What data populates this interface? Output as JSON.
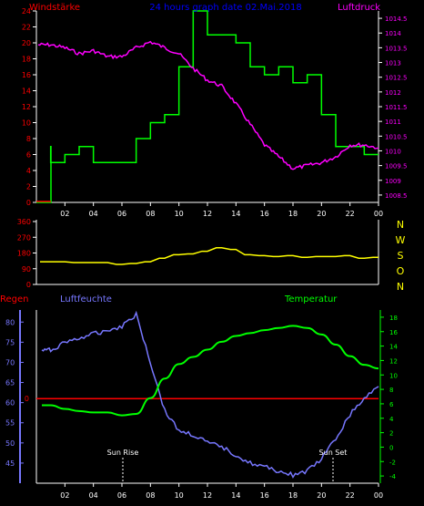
{
  "header": {
    "wind_label": "Windstärke",
    "date_label": "24 hours graph date 02.Mai.2018",
    "pressure_label": "Luftdruck"
  },
  "wind_axis_ticks": [
    "24",
    "22",
    "20",
    "18",
    "16",
    "14",
    "12",
    "10",
    "8",
    "6",
    "4",
    "2",
    "0"
  ],
  "pressure_axis_ticks": [
    "1014.5",
    "1014",
    "1013.5",
    "1013",
    "1012.5",
    "1012",
    "1011.5",
    "1011",
    "1010.5",
    "1010",
    "1009.5",
    "1009",
    "1008.5"
  ],
  "hour_ticks": [
    "02",
    "04",
    "06",
    "08",
    "10",
    "12",
    "14",
    "16",
    "18",
    "20",
    "22",
    "00"
  ],
  "direction": {
    "left_ticks": [
      "360",
      "270",
      "180",
      "90",
      "0"
    ],
    "right_labels": [
      "N",
      "W",
      "S",
      "O",
      "N"
    ]
  },
  "bottom": {
    "rain_label": "Regen",
    "humidity_label": "Luftfeuchte",
    "temperature_label": "Temperatur",
    "humidity_ticks": [
      "80",
      "75",
      "70",
      "65",
      "60",
      "55",
      "50",
      "45"
    ],
    "temperature_ticks": [
      "18",
      "16",
      "14",
      "12",
      "10",
      "8",
      "6",
      "4",
      "2",
      "0",
      "-2",
      "-4"
    ],
    "rain_tick": "0",
    "sunrise_label": "Sun Rise",
    "sunset_label": "Sun Set"
  },
  "colors": {
    "wind": "#00ff00",
    "pressure": "#ff00ff",
    "direction": "#ffff00",
    "humidity": "#7777ff",
    "temperature": "#00ff00",
    "rain": "#ff0000",
    "header_left": "#ff0000",
    "header_center": "#0000ff",
    "axis_white": "#ffffff"
  },
  "chart_data": [
    {
      "type": "line",
      "title": "24 hours graph date 02.Mai.2018",
      "x": [
        "01",
        "02",
        "03",
        "04",
        "05",
        "06",
        "07",
        "08",
        "09",
        "10",
        "11",
        "12",
        "13",
        "14",
        "15",
        "16",
        "17",
        "18",
        "19",
        "20",
        "21",
        "22",
        "23",
        "00"
      ],
      "series": [
        {
          "name": "Windstärke",
          "axis": "left",
          "values": [
            7,
            5,
            6,
            7,
            5,
            5,
            5,
            8,
            10,
            11,
            17,
            24,
            21,
            21,
            20,
            17,
            16,
            17,
            15,
            16,
            11,
            7,
            7,
            6
          ]
        },
        {
          "name": "Luftdruck",
          "axis": "right",
          "values": [
            1013.6,
            1013.5,
            1013.3,
            1013.4,
            1013.2,
            1013.2,
            1013.5,
            1013.7,
            1013.5,
            1013.3,
            1012.8,
            1012.4,
            1012.2,
            1011.6,
            1010.9,
            1010.2,
            1009.8,
            1009.4,
            1009.5,
            1009.6,
            1009.8,
            1010.2,
            1010.2,
            1010.1
          ]
        }
      ],
      "ylim_left": [
        0,
        24
      ],
      "ylim_right": [
        1008.25,
        1014.75
      ],
      "ylabel_left": "Windstärke",
      "ylabel_right": "Luftdruck",
      "grid": false
    },
    {
      "type": "line",
      "x": [
        "01",
        "02",
        "03",
        "04",
        "05",
        "06",
        "07",
        "08",
        "09",
        "10",
        "11",
        "12",
        "13",
        "14",
        "15",
        "16",
        "17",
        "18",
        "19",
        "20",
        "21",
        "22",
        "23",
        "00"
      ],
      "series": [
        {
          "values": [
            130,
            130,
            125,
            125,
            125,
            115,
            120,
            130,
            150,
            170,
            175,
            190,
            210,
            200,
            170,
            165,
            160,
            165,
            155,
            160,
            160,
            165,
            150,
            155
          ]
        }
      ],
      "ylim": [
        0,
        360
      ],
      "ylabel_right": "N W S O N"
    },
    {
      "type": "line",
      "x": [
        "01",
        "02",
        "03",
        "04",
        "05",
        "06",
        "07",
        "08",
        "09",
        "10",
        "11",
        "12",
        "13",
        "14",
        "15",
        "16",
        "17",
        "18",
        "19",
        "20",
        "21",
        "22",
        "23",
        "00"
      ],
      "series": [
        {
          "name": "Luftfeuchte",
          "axis": "left",
          "values": [
            73,
            75,
            76,
            77,
            78,
            79,
            82,
            70,
            58,
            53,
            52,
            50,
            49,
            47,
            45,
            44,
            43,
            42,
            43,
            46,
            51,
            57,
            61,
            64
          ]
        },
        {
          "name": "Temperatur",
          "axis": "right",
          "values": [
            5.8,
            5.3,
            5.0,
            4.8,
            4.8,
            4.4,
            4.6,
            6.8,
            9.5,
            11.5,
            12.5,
            13.5,
            14.6,
            15.4,
            15.8,
            16.2,
            16.5,
            16.8,
            16.5,
            15.6,
            14.2,
            12.6,
            11.4,
            10.9
          ]
        },
        {
          "name": "Regen",
          "axis": "rain",
          "values": [
            0,
            0,
            0,
            0,
            0,
            0,
            0,
            0,
            0,
            0,
            0,
            0,
            0,
            0,
            0,
            0,
            0,
            0,
            0,
            0,
            0,
            0,
            0,
            0
          ]
        }
      ],
      "ylim_left": [
        40,
        83
      ],
      "ylim_right": [
        -5,
        19
      ],
      "annotations": [
        "Sun Rise",
        "Sun Set"
      ]
    }
  ]
}
